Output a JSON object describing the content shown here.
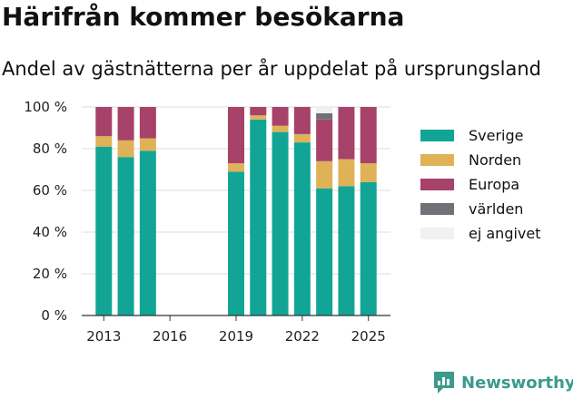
{
  "title": "Härifrån kommer besökarna",
  "subtitle": "Andel av gästnätterna per år uppdelat på ursprungsland",
  "brand": {
    "name": "Newsworthy",
    "logo_icon": "newsworthy-logo-icon"
  },
  "chart_data": {
    "type": "bar",
    "stacked": true,
    "x": [
      2013,
      2014,
      2015,
      2019,
      2020,
      2021,
      2022,
      2023,
      2024,
      2025
    ],
    "x_ticks": [
      2013,
      2016,
      2019,
      2022,
      2025
    ],
    "x_tick_labels": [
      "2013",
      "2016",
      "2019",
      "2022",
      "2025"
    ],
    "xlim": [
      2012,
      2026
    ],
    "ylim": [
      0,
      100
    ],
    "y_ticks": [
      0,
      20,
      40,
      60,
      80,
      100
    ],
    "y_tick_labels": [
      "0 %",
      "20 %",
      "40 %",
      "60 %",
      "80 %",
      "100 %"
    ],
    "grid": "horizontal",
    "legend_position": "right",
    "series": [
      {
        "name": "Sverige",
        "color": "#12a596",
        "values": [
          81,
          76,
          79,
          69,
          94,
          88,
          83,
          61,
          62,
          64
        ]
      },
      {
        "name": "Norden",
        "color": "#e0b258",
        "values": [
          5,
          8,
          6,
          4,
          2,
          3,
          4,
          13,
          13,
          9
        ]
      },
      {
        "name": "Europa",
        "color": "#a7426a",
        "values": [
          14,
          16,
          15,
          27,
          4,
          9,
          13,
          20,
          25,
          27
        ]
      },
      {
        "name": "världen",
        "color": "#707176",
        "values": [
          0,
          0,
          0,
          0,
          0,
          0,
          0,
          3,
          0,
          0
        ]
      },
      {
        "name": "ej angivet",
        "color": "#f1f1f2",
        "values": [
          0,
          0,
          0,
          0,
          0,
          0,
          0,
          3,
          0,
          0
        ]
      }
    ]
  }
}
